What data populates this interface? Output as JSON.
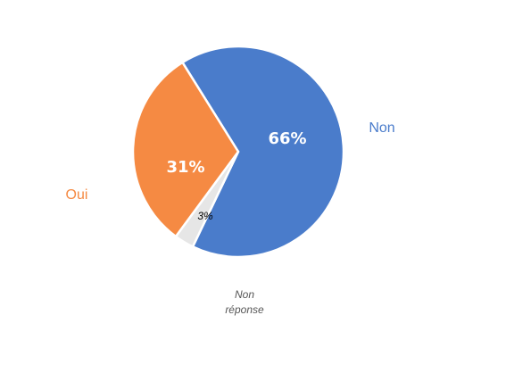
{
  "chart_data": {
    "type": "pie",
    "slices": [
      {
        "category": "Non",
        "value": 66,
        "label": "66%",
        "color": "#4A7CCB"
      },
      {
        "category": "Non réponse",
        "value": 3,
        "label": "3%",
        "color": "#E6E6E6"
      },
      {
        "category": "Oui",
        "value": 31,
        "label": "31%",
        "color": "#F58A43"
      }
    ],
    "category_labels": {
      "non": "Non",
      "oui": "Oui",
      "non_reponse_line1": "Non",
      "non_reponse_line2": "réponse"
    },
    "title": "",
    "legend": "none"
  }
}
